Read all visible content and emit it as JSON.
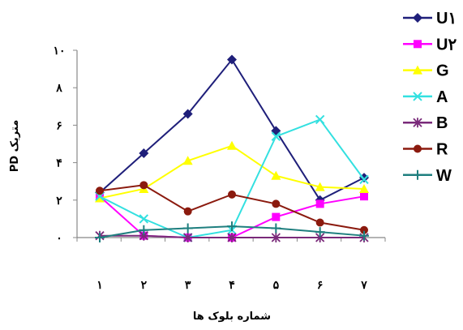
{
  "chart_data": {
    "type": "line",
    "title": "",
    "xlabel": "شماره بلوک ها",
    "ylabel": "PD متریک",
    "categories": [
      "۱",
      "۲",
      "۳",
      "۴",
      "۵",
      "۶",
      "۷"
    ],
    "yticks": [
      "۰",
      "۲",
      "۴",
      "۶",
      "۸",
      "۱۰"
    ],
    "ylim": [
      0,
      10
    ],
    "grid": false,
    "legend_position": "right",
    "series": [
      {
        "name": "U۱",
        "color": "#1f1f7a",
        "marker": "diamond",
        "values": [
          2.4,
          4.5,
          6.6,
          9.5,
          5.7,
          2.0,
          3.2
        ]
      },
      {
        "name": "U۲",
        "color": "#ff00ff",
        "marker": "square",
        "values": [
          2.2,
          0.1,
          0.0,
          0.0,
          1.1,
          1.8,
          2.2
        ]
      },
      {
        "name": "G",
        "color": "#ffff00",
        "marker": "triangle",
        "values": [
          2.1,
          2.6,
          4.1,
          4.9,
          3.3,
          2.7,
          2.6
        ]
      },
      {
        "name": "A",
        "color": "#33e0e0",
        "marker": "x",
        "values": [
          2.2,
          1.0,
          0.0,
          0.4,
          5.4,
          6.3,
          3.1
        ]
      },
      {
        "name": "B",
        "color": "#7a2a7a",
        "marker": "asterisk",
        "values": [
          0.1,
          0.1,
          0.0,
          0.0,
          0.0,
          0.0,
          0.0
        ]
      },
      {
        "name": "R",
        "color": "#8b1a0e",
        "marker": "circle",
        "values": [
          2.5,
          2.8,
          1.4,
          2.3,
          1.8,
          0.8,
          0.4
        ]
      },
      {
        "name": "W",
        "color": "#1f7f7f",
        "marker": "plus",
        "values": [
          0.0,
          0.4,
          0.5,
          0.6,
          0.5,
          0.3,
          0.1
        ]
      }
    ]
  }
}
